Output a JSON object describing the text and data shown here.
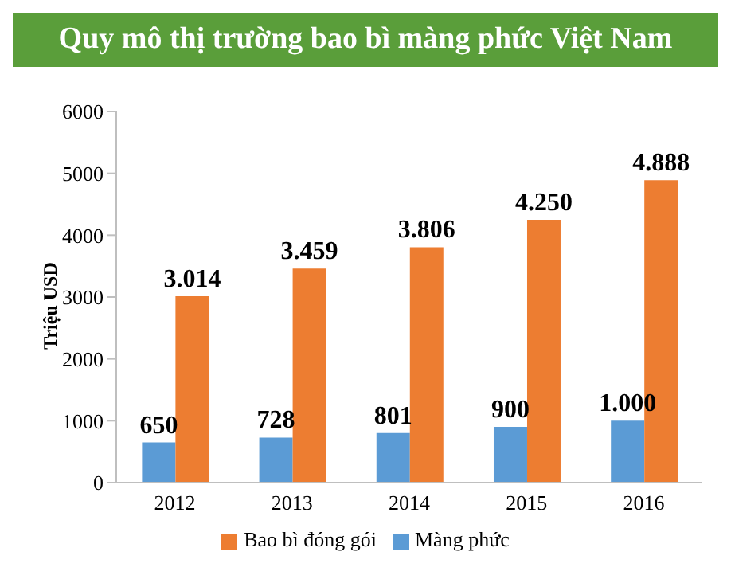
{
  "chart_data": {
    "type": "bar",
    "title": "Quy mô thị trường bao bì màng phức Việt Nam",
    "ylabel": "Triệu USD",
    "categories": [
      "2012",
      "2013",
      "2014",
      "2015",
      "2016"
    ],
    "series": [
      {
        "name": "Màng phức",
        "color": "#5b9bd5",
        "values": [
          650,
          728,
          801,
          900,
          1000
        ],
        "value_labels": [
          "650",
          "728",
          "801",
          "900",
          "1.000"
        ]
      },
      {
        "name": "Bao bì đóng gói",
        "color": "#ed7d31",
        "values": [
          3014,
          3459,
          3806,
          4250,
          4888
        ],
        "value_labels": [
          "3.014",
          "3.459",
          "3.806",
          "4.250",
          "4.888"
        ]
      }
    ],
    "ylim": [
      0,
      6000
    ],
    "yticks": [
      0,
      1000,
      2000,
      3000,
      4000,
      5000,
      6000
    ],
    "grid": false,
    "legend": "bottom"
  }
}
